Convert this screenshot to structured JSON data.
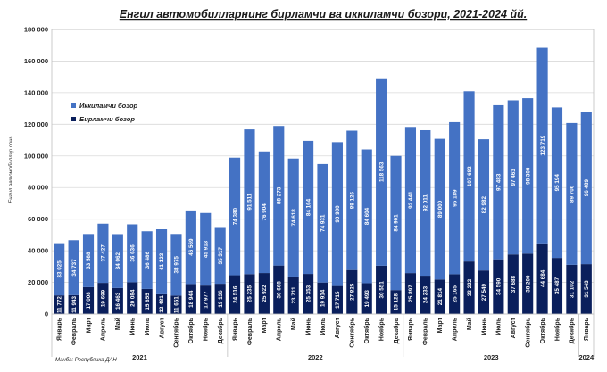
{
  "chart_data": {
    "type": "stacked-bar",
    "title": "Енгил автомобилларнинг бирламчи ва иккиламчи бозори, 2021-2024 йй.",
    "ylabel": "Енгил автомобиллар сони",
    "ylim": [
      0,
      180000
    ],
    "yticks": [
      "0",
      "20 000",
      "40 000",
      "60 000",
      "80 000",
      "100 000",
      "120 000",
      "140 000",
      "160 000",
      "180 000"
    ],
    "ytick_values": [
      0,
      20000,
      40000,
      60000,
      80000,
      100000,
      120000,
      140000,
      160000,
      180000
    ],
    "legend_position": "upper-left",
    "source": "Манба: Республика ДАН",
    "colors": {
      "secondary": "#4472C4",
      "primary": "#0A1F5C",
      "grid": "#D9D9D9",
      "label": "#FFFFFF"
    },
    "categories": [
      "Январь",
      "Февраль",
      "Март",
      "Апрель",
      "Май",
      "Июнь",
      "Июль",
      "Август",
      "Сентябрь",
      "Октябрь",
      "Ноябрь",
      "Декабрь",
      "Январь",
      "Февраль",
      "Март",
      "Апрель",
      "Май",
      "Июнь",
      "Июль",
      "Август",
      "Сентябрь",
      "Октябрь",
      "Ноябрь",
      "Декабрь",
      "Январь",
      "Февраль",
      "Март",
      "Апрель",
      "Май",
      "Июнь",
      "Июль",
      "Август",
      "Сентябрь",
      "Октябрь",
      "Ноябрь",
      "Декабрь",
      "Январь"
    ],
    "years": [
      {
        "label": "2021",
        "start": 0,
        "end": 11
      },
      {
        "label": "2022",
        "start": 12,
        "end": 23
      },
      {
        "label": "2023",
        "start": 24,
        "end": 35
      },
      {
        "label": "2024",
        "start": 36,
        "end": 36
      }
    ],
    "series": [
      {
        "name": "Бирламчи бозор",
        "values": [
          11772,
          11943,
          17008,
          19699,
          16463,
          20084,
          15855,
          12481,
          11651,
          18944,
          17977,
          19136,
          24516,
          25235,
          25922,
          30668,
          23711,
          25353,
          19914,
          17715,
          27825,
          19493,
          30551,
          15128,
          25897,
          24233,
          21814,
          25165,
          33222,
          27549,
          34590,
          37688,
          38200,
          44684,
          35487,
          31102,
          31543
        ],
        "labels": [
          "11 772",
          "11 943",
          "17 008",
          "19 699",
          "16 463",
          "20 084",
          "15 855",
          "12 481",
          "11 651",
          "18 944",
          "17 977",
          "19 136",
          "24 516",
          "25 235",
          "25 922",
          "30 668",
          "23 711",
          "25 353",
          "19 914",
          "17 715",
          "27 825",
          "19 493",
          "30 551",
          "15 128",
          "25 897",
          "24 233",
          "21 814",
          "25 165",
          "33 222",
          "27 549",
          "34 590",
          "37 688",
          "38 200",
          "44 684",
          "35 487",
          "31 102",
          "31 543"
        ]
      },
      {
        "name": "Иккиламчи бозор",
        "values": [
          33025,
          34737,
          33588,
          37427,
          34062,
          36636,
          36486,
          41123,
          38975,
          46569,
          45913,
          35317,
          74380,
          91511,
          76904,
          88273,
          74618,
          84164,
          74931,
          90980,
          88126,
          84604,
          118563,
          84901,
          92441,
          92011,
          89000,
          96189,
          107682,
          82982,
          97483,
          97463,
          98300,
          123719,
          95194,
          89706,
          96489
        ],
        "labels": [
          "33 025",
          "34 737",
          "33 588",
          "37 427",
          "34 062",
          "36 636",
          "36 486",
          "41 123",
          "38 975",
          "46 569",
          "45 913",
          "35 317",
          "74 380",
          "91 511",
          "76 904",
          "88 273",
          "74 618",
          "84 164",
          "74 931",
          "90 980",
          "88 126",
          "84 604",
          "118 563",
          "84 901",
          "92 441",
          "92 011",
          "89 000",
          "96 189",
          "107 682",
          "82 982",
          "97 483",
          "97 463",
          "98 300",
          "123 719",
          "95 194",
          "89 706",
          "96 489"
        ]
      }
    ]
  }
}
